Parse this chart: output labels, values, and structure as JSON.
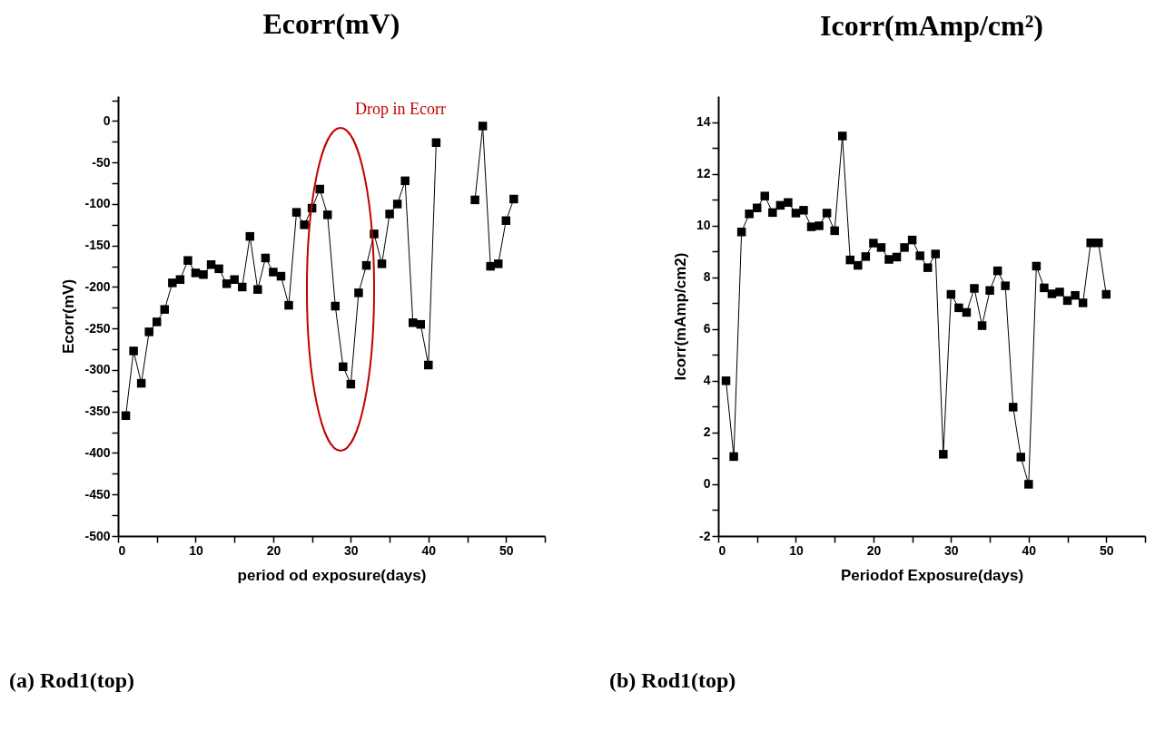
{
  "chart_data": [
    {
      "type": "line",
      "title": "Ecorr(mV)",
      "xlabel": "period od exposure(days)",
      "ylabel": "Ecorr(mV)",
      "marker": "square",
      "line_style": "solid",
      "grid": false,
      "x": [
        1,
        2,
        3,
        4,
        5,
        6,
        7,
        8,
        9,
        10,
        11,
        12,
        13,
        14,
        15,
        16,
        17,
        18,
        19,
        20,
        21,
        22,
        23,
        24,
        25,
        26,
        27,
        28,
        29,
        30,
        31,
        32,
        33,
        34,
        35,
        36,
        37,
        38,
        39,
        40,
        41,
        42,
        43,
        44,
        45,
        46,
        47,
        48,
        49,
        50,
        51
      ],
      "series": [
        {
          "color": "#000000",
          "values": [
            -355,
            -277,
            -316,
            -254,
            -242,
            -227,
            -195,
            -191,
            -168,
            -183,
            -185,
            -173,
            -178,
            -196,
            -191,
            -200,
            -139,
            -203,
            -165,
            -182,
            -187,
            -222,
            -110,
            -125,
            -105,
            -82,
            -113,
            -223,
            -296,
            -317,
            -207,
            -174,
            -136,
            -172,
            -112,
            -100,
            -72,
            -243,
            -245,
            -294,
            -26,
            null,
            null,
            null,
            null,
            -95,
            -6,
            -175,
            -172,
            -120,
            -94
          ]
        }
      ],
      "xlim": [
        0,
        55
      ],
      "ylim": [
        -500,
        30
      ],
      "xticks": [
        0,
        {
          "value": 5,
          "label": null
        },
        10,
        {
          "value": 15,
          "label": null
        },
        20,
        {
          "value": 25,
          "label": null
        },
        30,
        {
          "value": 35,
          "label": null
        },
        40,
        {
          "value": 45,
          "label": null
        },
        50,
        {
          "value": 55,
          "label": null
        }
      ],
      "yticks": [
        -500,
        {
          "value": -475,
          "label": null
        },
        -450,
        {
          "value": -425,
          "label": null
        },
        -400,
        {
          "value": -375,
          "label": null
        },
        -350,
        {
          "value": -325,
          "label": null
        },
        -300,
        {
          "value": -275,
          "label": null
        },
        -250,
        {
          "value": -225,
          "label": null
        },
        -200,
        {
          "value": -175,
          "label": null
        },
        -150,
        {
          "value": -125,
          "label": null
        },
        -100,
        {
          "value": -75,
          "label": null
        },
        -50,
        {
          "value": -25,
          "label": null
        },
        0,
        {
          "value": 25,
          "label": null
        }
      ],
      "annotations": [
        "Drop in Ecorr",
        "(a) Rod1(top)"
      ]
    },
    {
      "type": "line",
      "title": "Icorr(mAmp/cm²)",
      "xlabel": "Periodof Exposure(days)",
      "ylabel": "Icorr(mAmp/cm2)",
      "marker": "square",
      "line_style": "solid",
      "grid": false,
      "x": [
        1,
        2,
        3,
        4,
        5,
        6,
        7,
        8,
        9,
        10,
        11,
        12,
        13,
        14,
        15,
        16,
        17,
        18,
        19,
        20,
        21,
        22,
        23,
        24,
        25,
        26,
        27,
        28,
        29,
        30,
        31,
        32,
        33,
        34,
        35,
        36,
        37,
        38,
        39,
        40,
        41,
        42,
        43,
        44,
        45,
        46,
        47,
        48,
        49,
        50
      ],
      "series": [
        {
          "color": "#000000",
          "values": [
            4.0,
            1.07,
            9.75,
            10.45,
            10.68,
            11.14,
            10.5,
            10.78,
            10.89,
            10.48,
            10.59,
            9.95,
            9.99,
            10.48,
            9.8,
            13.46,
            8.67,
            8.46,
            8.8,
            9.32,
            9.15,
            8.69,
            8.78,
            9.15,
            9.44,
            8.83,
            8.37,
            8.9,
            1.16,
            7.34,
            6.82,
            6.64,
            7.57,
            6.13,
            7.49,
            8.25,
            7.67,
            2.98,
            1.05,
            0.0,
            8.43,
            7.59,
            7.36,
            7.43,
            7.1,
            7.3,
            7.01,
            9.33,
            9.33,
            7.34
          ]
        }
      ],
      "xlim": [
        0,
        55
      ],
      "ylim": [
        -2,
        15
      ],
      "xticks": [
        0,
        {
          "value": 5,
          "label": null
        },
        10,
        {
          "value": 15,
          "label": null
        },
        20,
        {
          "value": 25,
          "label": null
        },
        30,
        {
          "value": 35,
          "label": null
        },
        40,
        {
          "value": 45,
          "label": null
        },
        50,
        {
          "value": 55,
          "label": null
        }
      ],
      "yticks": [
        -2,
        {
          "value": -1,
          "label": null
        },
        0,
        {
          "value": 1,
          "label": null
        },
        2,
        {
          "value": 3,
          "label": null
        },
        4,
        {
          "value": 5,
          "label": null
        },
        6,
        {
          "value": 7,
          "label": null
        },
        8,
        {
          "value": 9,
          "label": null
        },
        10,
        {
          "value": 11,
          "label": null
        },
        12,
        {
          "value": 13,
          "label": null
        },
        14
      ],
      "annotations": [
        "(b) Rod1(top)"
      ]
    }
  ]
}
